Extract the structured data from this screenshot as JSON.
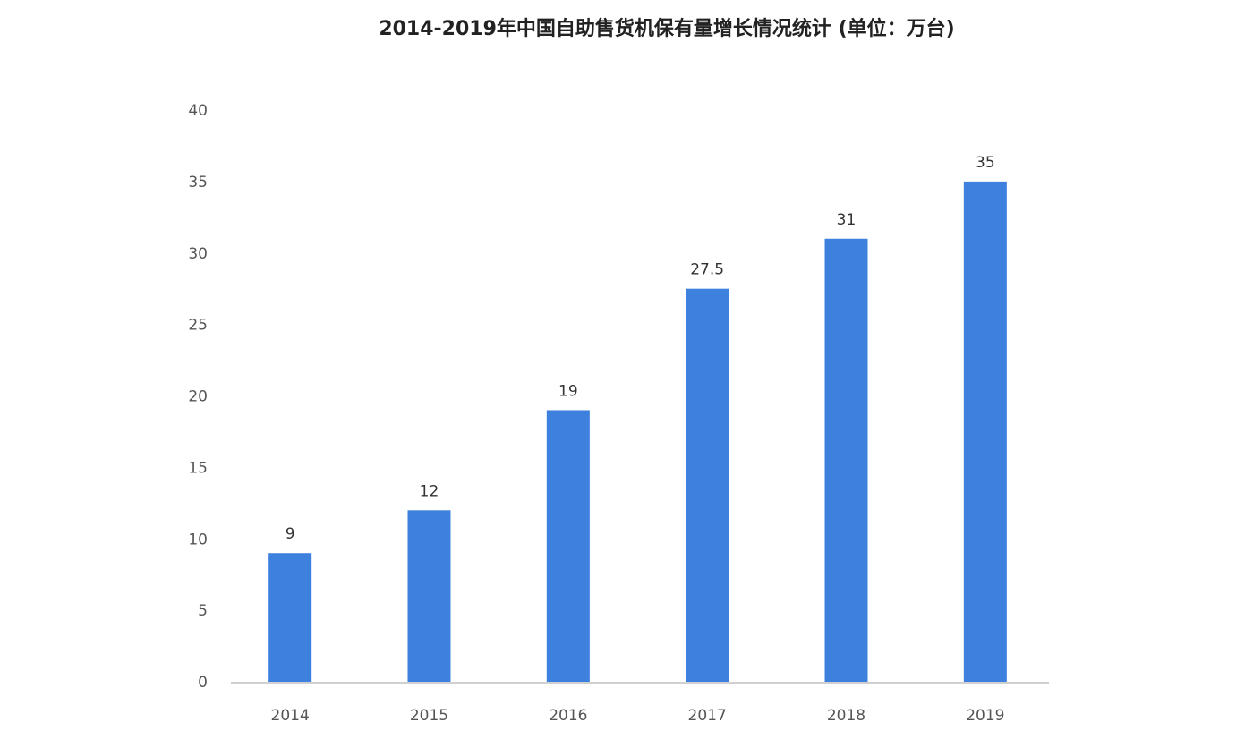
{
  "chart_data": {
    "type": "bar",
    "title": "2014-2019年中国自助售货机保有量增长情况统计 (单位：万台)",
    "xlabel": "",
    "ylabel": "",
    "categories": [
      "2014",
      "2015",
      "2016",
      "2017",
      "2018",
      "2019"
    ],
    "values": [
      9,
      12,
      19,
      27.5,
      31,
      35
    ],
    "data_labels": [
      "9",
      "12",
      "19",
      "27.5",
      "31",
      "35"
    ],
    "ylim": [
      0,
      40
    ],
    "yticks": [
      0,
      5,
      10,
      15,
      20,
      25,
      30,
      35,
      40
    ],
    "grid": false,
    "legend": "none",
    "colors": {
      "bar": "#3d80de",
      "axis": "#d0d0d0"
    }
  }
}
